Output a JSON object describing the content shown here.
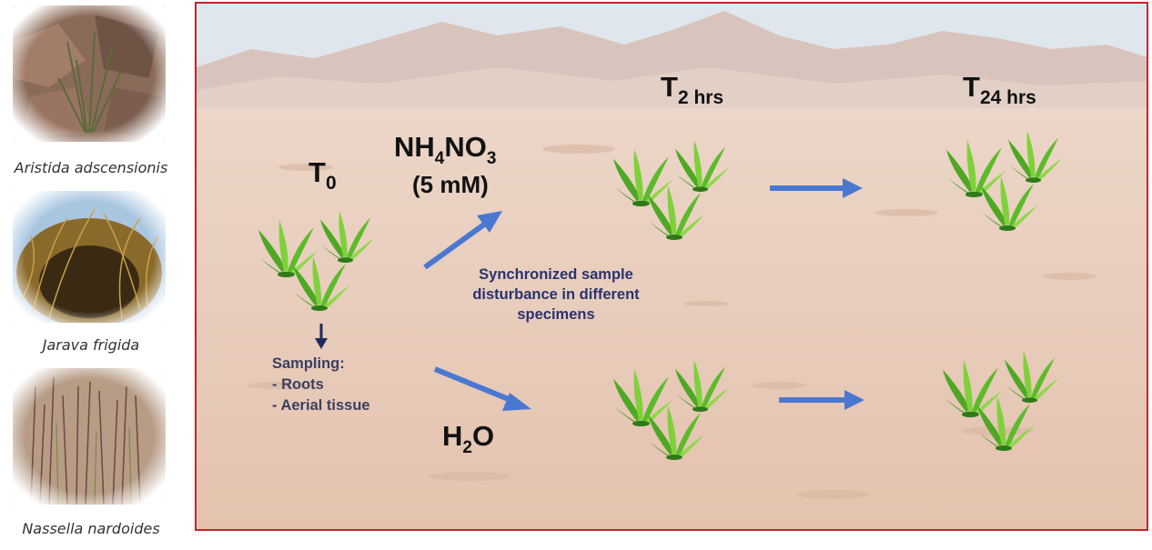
{
  "species": [
    {
      "name": "Aristida adscensionis",
      "photo_icon": "rocky-grass-photo"
    },
    {
      "name": "Jarava frigida",
      "photo_icon": "tussock-grass-photo"
    },
    {
      "name": "Nassella nardoides",
      "photo_icon": "reed-grass-photo"
    }
  ],
  "timepoints": {
    "t0": {
      "main": "T",
      "sub": "0"
    },
    "t2": {
      "main": "T",
      "sub": "2 hrs"
    },
    "t24": {
      "main": "T",
      "sub": "24 hrs"
    }
  },
  "treatments": {
    "nh4no3": {
      "p1": "NH",
      "s1": "4",
      "p2": "NO",
      "s2": "3",
      "conc": "(5 mM)"
    },
    "h2o": {
      "p1": "H",
      "s1": "2",
      "p2": "O"
    }
  },
  "note": {
    "line1": "Synchronized sample",
    "line2": "disturbance in different",
    "line3": "specimens"
  },
  "sampling": {
    "title": "Sampling:",
    "item1": "- Roots",
    "item2": "- Aerial tissue"
  },
  "colors": {
    "border": "#c0262d",
    "arrow": "#4a78d0",
    "note_text": "#28336e",
    "plant_green": "#5fbf2a",
    "ground": "#e8c8b4"
  }
}
